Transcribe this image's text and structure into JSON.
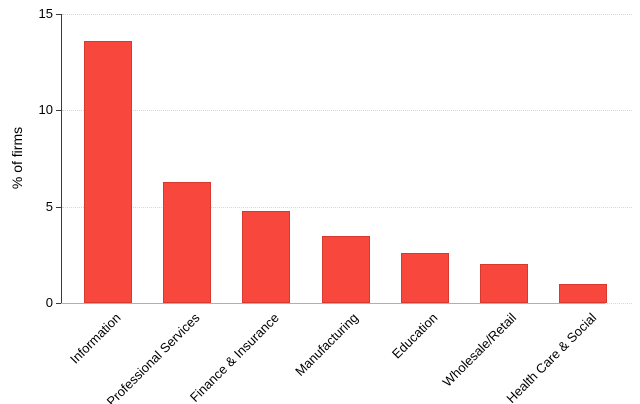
{
  "chart_data": {
    "type": "bar",
    "categories": [
      "Information",
      "Professional Services",
      "Finance & Insurance",
      "Manufacturing",
      "Education",
      "Wholesale/Retail",
      "Health Care & Social"
    ],
    "values": [
      13.6,
      6.3,
      4.8,
      3.5,
      2.6,
      2.0,
      1.0
    ],
    "ylabel": "% of firms",
    "ylim": [
      0,
      15
    ],
    "yticks": [
      0,
      5,
      10,
      15
    ],
    "grid": "horizontal dotted lines at y ticks",
    "legend": "none",
    "x_tick_label_rotation_deg": 45,
    "colors": {
      "bar_fill": "#f8473d",
      "bar_border": "#d63a2f",
      "y_axis": "#3a3a3a",
      "x_baseline": "#b0b0b0",
      "gridline": "#d6d6d6",
      "text": "#000000",
      "background": "#ffffff"
    }
  }
}
